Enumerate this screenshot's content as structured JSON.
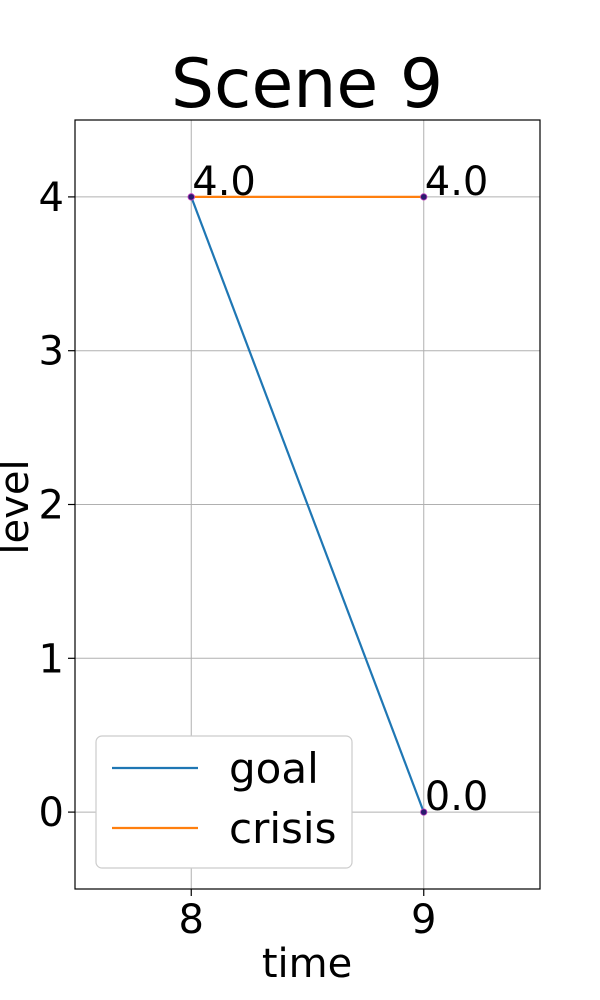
{
  "chart_data": {
    "type": "line",
    "title": "Scene 9",
    "xlabel": "time",
    "ylabel": "level",
    "x": [
      8,
      9
    ],
    "xlim": [
      7.5,
      9.5
    ],
    "ylim": [
      -0.5,
      4.5
    ],
    "xticks": [
      8,
      9
    ],
    "yticks": [
      0,
      1,
      2,
      3,
      4
    ],
    "grid": true,
    "legend_position": "lower-left",
    "series": [
      {
        "name": "goal",
        "color": "#1f77b4",
        "values": [
          4.0,
          0.0
        ],
        "point_labels": [
          "4.0",
          "0.0"
        ]
      },
      {
        "name": "crisis",
        "color": "#ff7f0e",
        "values": [
          4.0,
          4.0
        ],
        "point_labels": [
          "4.0",
          "4.0"
        ]
      }
    ]
  }
}
